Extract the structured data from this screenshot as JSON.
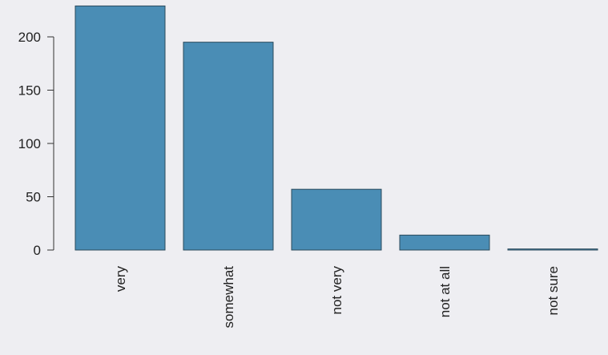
{
  "chart_data": {
    "type": "bar",
    "categories": [
      "very",
      "somewhat",
      "not very",
      "not at all",
      "not sure"
    ],
    "values": [
      229,
      195,
      57,
      14,
      1
    ],
    "title": "",
    "xlabel": "",
    "ylabel": "",
    "ylim": [
      0,
      230
    ],
    "yticks": [
      0,
      50,
      100,
      150,
      200
    ],
    "grid": false,
    "legend": "none",
    "colors": {
      "bar_fill": "#4a8db5",
      "bar_stroke": "#2b4a5c",
      "axis": "#333333",
      "background": "#eeeef2"
    }
  }
}
